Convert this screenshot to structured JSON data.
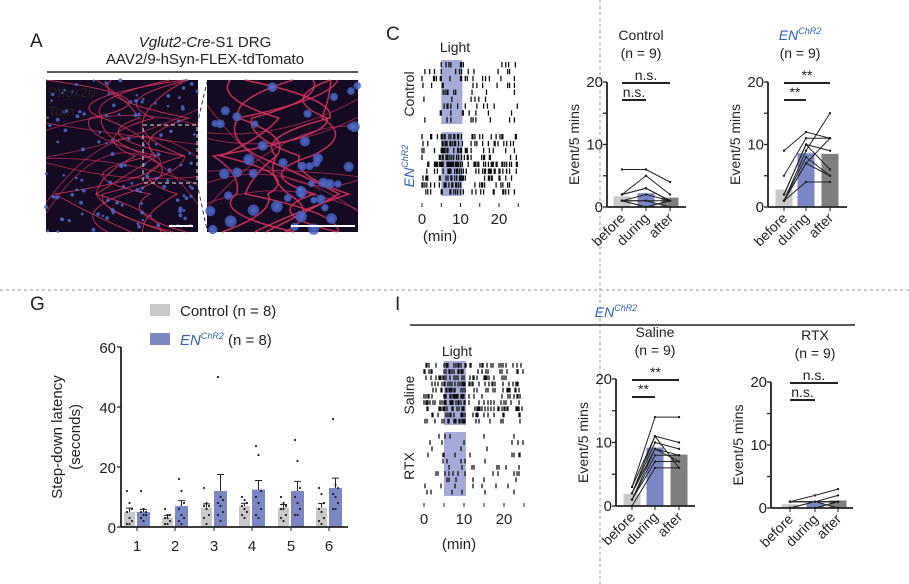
{
  "colors": {
    "control": "#c8c9c8",
    "enchr2": "#7b86c4",
    "after": "#7f7f7f",
    "light": "#a4abd8",
    "en_label": "#2f5fb8",
    "divider": "#9a9a9a"
  },
  "panels": {
    "A": {
      "letter": "A",
      "title_italic": "Vglut2-Cre",
      "title_rest": "-S1 DRG",
      "subtitle": "AAV2/9-hSyn-FLEX-tdTomato",
      "stain1": "Phox2b",
      "stain2": "Tom",
      "stain1_color": "#2a8fd8",
      "stain2_color": "#e0262e"
    },
    "C": {
      "letter": "C",
      "light_label": "Light",
      "row_label_control": "Control",
      "row_label_en": "EN",
      "row_label_en_sup": "ChR2",
      "x_ticks": [
        "0",
        "10",
        "20"
      ],
      "x_unit": "(min)"
    },
    "G": {
      "letter": "G",
      "legend_control": "Control (n = 8)",
      "legend_en": "EN",
      "legend_en_sup": "ChR2",
      "legend_en_rest": " (n = 8)"
    },
    "I": {
      "letter": "I",
      "header": "EN",
      "header_sup": "ChR2",
      "light_label": "Light",
      "row_label_saline": "Saline",
      "row_label_rtx": "RTX",
      "x_ticks": [
        "0",
        "10",
        "20"
      ],
      "x_unit": "(min)"
    }
  },
  "chart_data": [
    {
      "id": "C-raster",
      "type": "scatter",
      "title": "Light",
      "xlabel": "(min)",
      "xlim": [
        0,
        25
      ],
      "light_window": [
        5,
        10.5
      ],
      "groups": [
        {
          "name": "Control",
          "rows": 9,
          "rate_outside": 0.35,
          "rate_light": 0.55
        },
        {
          "name": "ENChR2",
          "rows": 9,
          "rate_outside": 1.0,
          "rate_light": 2.0
        }
      ]
    },
    {
      "id": "C-control",
      "type": "bar",
      "title": "Control",
      "subtitle": "(n = 9)",
      "categories": [
        "before",
        "during",
        "after"
      ],
      "values": [
        1.7,
        2.2,
        1.5
      ],
      "individual": [
        [
          6,
          6,
          4
        ],
        [
          2,
          5,
          2
        ],
        [
          2,
          3,
          1
        ],
        [
          2,
          3,
          1
        ],
        [
          1,
          2,
          1
        ],
        [
          1,
          1,
          1
        ],
        [
          1,
          1,
          0
        ],
        [
          1,
          0,
          1
        ],
        [
          1,
          0,
          1
        ]
      ],
      "ylabel": "Event/5 mins",
      "ylim": [
        0,
        20
      ],
      "yticks": [
        0,
        10,
        20
      ],
      "significance": [
        {
          "from": 0,
          "to": 2,
          "label": "n.s."
        },
        {
          "from": 0,
          "to": 1,
          "label": "n.s."
        }
      ]
    },
    {
      "id": "C-enchr2",
      "type": "bar",
      "title": "EN",
      "title_sup": "ChR2",
      "subtitle": "(n = 9)",
      "categories": [
        "before",
        "during",
        "after"
      ],
      "values": [
        2.8,
        8.6,
        8.5
      ],
      "individual": [
        [
          9,
          12,
          11
        ],
        [
          5,
          11,
          11
        ],
        [
          2,
          10,
          9
        ],
        [
          2,
          10,
          6
        ],
        [
          1,
          9,
          15
        ],
        [
          1,
          8,
          5
        ],
        [
          1,
          7,
          5
        ],
        [
          1,
          7,
          11
        ],
        [
          1,
          4,
          4
        ]
      ],
      "ylabel": "Event/5 mins",
      "ylim": [
        0,
        20
      ],
      "yticks": [
        0,
        10,
        20
      ],
      "significance": [
        {
          "from": 0,
          "to": 2,
          "label": "**"
        },
        {
          "from": 0,
          "to": 1,
          "label": "**"
        }
      ]
    },
    {
      "id": "G",
      "type": "bar",
      "categories": [
        "1",
        "2",
        "3",
        "4",
        "5",
        "6"
      ],
      "ylabel": "Step-down latency",
      "ylabel2": "(seconds)",
      "ylim": [
        0,
        60
      ],
      "yticks": [
        0,
        20,
        40,
        60
      ],
      "series": [
        {
          "name": "Control (n = 8)",
          "values": [
            5,
            3,
            6.5,
            7,
            6.5,
            6.5
          ],
          "sem": [
            1.3,
            0.9,
            1.2,
            0.9,
            1.0,
            1.3
          ],
          "points": [
            [
              12,
              8,
              6,
              5,
              3,
              2,
              1,
              1
            ],
            [
              6,
              4,
              4,
              3,
              3,
              2,
              1,
              1
            ],
            [
              13,
              8,
              7,
              7,
              6,
              4,
              3,
              1
            ],
            [
              10,
              9,
              8,
              7,
              6,
              5,
              4,
              3
            ],
            [
              10,
              8,
              7,
              6,
              6,
              4,
              3,
              2
            ],
            [
              13,
              11,
              8,
              6,
              5,
              3,
              2,
              1
            ]
          ]
        },
        {
          "name": "ENChR2 (n = 8)",
          "values": [
            5,
            7,
            12,
            12.5,
            12,
            13
          ],
          "sem": [
            0.9,
            1.8,
            5.5,
            3,
            3.2,
            3.3
          ],
          "points": [
            [
              12,
              6,
              5,
              5,
              4,
              4,
              3,
              2
            ],
            [
              16,
              12,
              8,
              6,
              4,
              3,
              2,
              1
            ],
            [
              50,
              10,
              9,
              8,
              7,
              5,
              4,
              2
            ],
            [
              27,
              24,
              12,
              10,
              8,
              6,
              4,
              3
            ],
            [
              29,
              22,
              13,
              10,
              8,
              6,
              4,
              4
            ],
            [
              36,
              14,
              13,
              11,
              10,
              8,
              6,
              6
            ]
          ]
        }
      ]
    },
    {
      "id": "I-raster",
      "type": "scatter",
      "title": "Light",
      "xlabel": "(min)",
      "xlim": [
        0,
        25
      ],
      "light_window": [
        5,
        10.5
      ],
      "groups": [
        {
          "name": "Saline",
          "rows": 10,
          "rate_outside": 0.9,
          "rate_light": 2.0
        },
        {
          "name": "RTX",
          "rows": 10,
          "rate_outside": 0.25,
          "rate_light": 0.3
        }
      ]
    },
    {
      "id": "I-saline",
      "type": "bar",
      "title": "Saline",
      "subtitle": "(n = 9)",
      "categories": [
        "before",
        "during",
        "after"
      ],
      "values": [
        1.9,
        9.2,
        8.1
      ],
      "individual": [
        [
          3,
          14,
          14
        ],
        [
          3,
          11,
          10
        ],
        [
          2,
          11,
          6
        ],
        [
          2,
          10,
          9
        ],
        [
          2,
          9,
          8
        ],
        [
          1,
          9,
          7
        ],
        [
          1,
          8,
          8
        ],
        [
          1,
          7,
          7
        ],
        [
          0,
          6,
          6
        ]
      ],
      "ylabel": "Event/5 mins",
      "ylim": [
        0,
        20
      ],
      "yticks": [
        0,
        10,
        20
      ],
      "significance": [
        {
          "from": 0,
          "to": 2,
          "label": "**"
        },
        {
          "from": 0,
          "to": 1,
          "label": "**"
        }
      ]
    },
    {
      "id": "I-rtx",
      "type": "bar",
      "title": "RTX",
      "subtitle": "(n = 9)",
      "categories": [
        "before",
        "during",
        "after"
      ],
      "values": [
        0.6,
        0.8,
        1.2
      ],
      "individual": [
        [
          1,
          2,
          3
        ],
        [
          1,
          1,
          2
        ],
        [
          1,
          1,
          1
        ],
        [
          1,
          1,
          1
        ],
        [
          0,
          1,
          1
        ],
        [
          0,
          0,
          1
        ],
        [
          0,
          0,
          1
        ],
        [
          0,
          1,
          0
        ],
        [
          0,
          0,
          0
        ]
      ],
      "ylabel": "Event/5 mins",
      "ylim": [
        0,
        20
      ],
      "yticks": [
        0,
        10,
        20
      ],
      "significance": [
        {
          "from": 0,
          "to": 2,
          "label": "n.s."
        },
        {
          "from": 0,
          "to": 1,
          "label": "n.s."
        }
      ]
    }
  ]
}
